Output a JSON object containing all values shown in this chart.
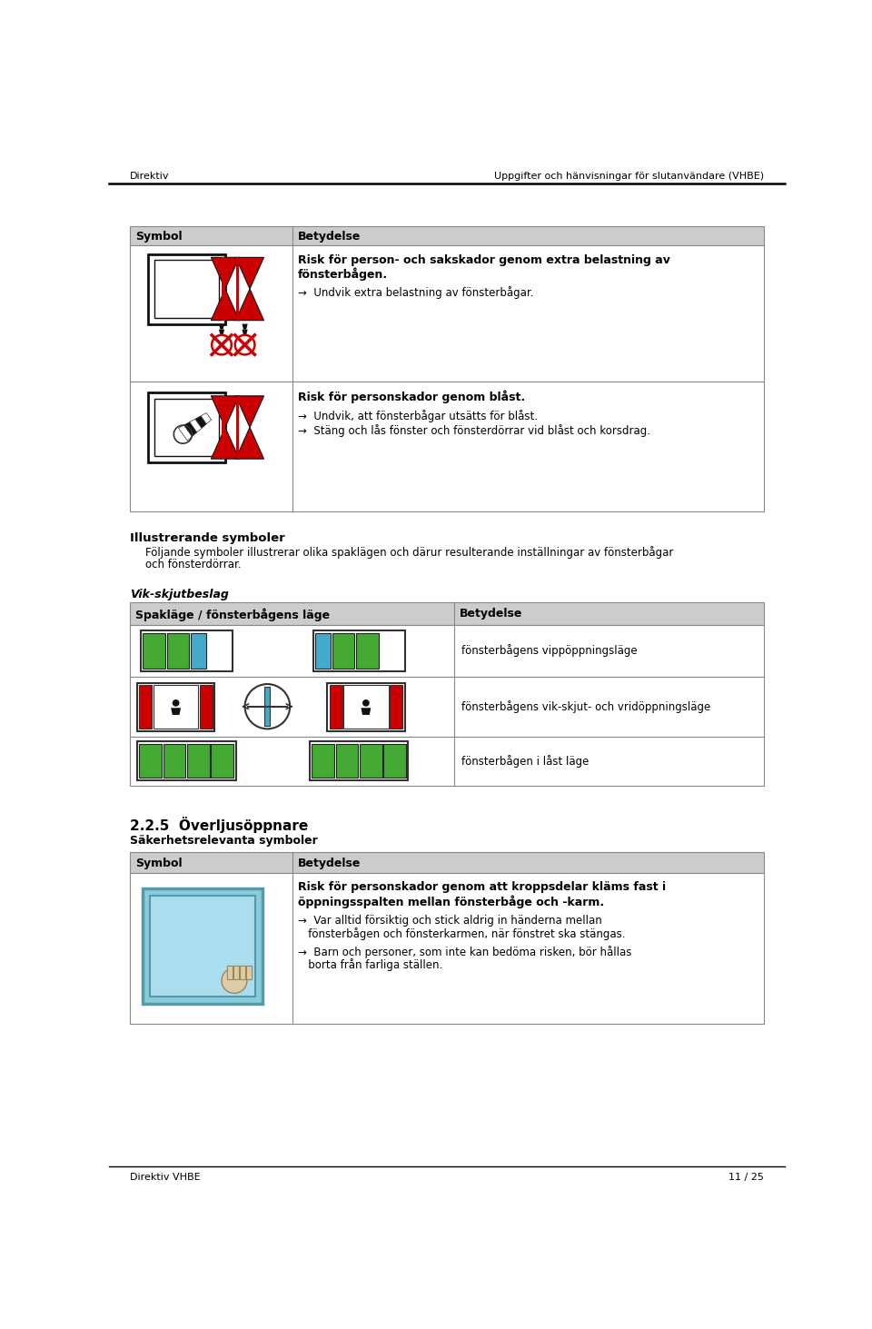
{
  "header_left": "Direktiv",
  "header_right": "Uppgifter och hänvisningar för slutanvändare (VHBE)",
  "footer_left": "Direktiv VHBE",
  "footer_right": "11 / 25",
  "section_heading": "Illustrerande symboler",
  "section_body_line1": "Följande symboler illustrerar olika spaklägen och därur resulterande inställningar av fönsterbågar",
  "section_body_line2": "och fönsterdörrar.",
  "table1_h1": "Symbol",
  "table1_h2": "Betydelse",
  "r1_bold": "Risk för person- och sakskador genom extra belastning av\nfönsterbågen.",
  "r1_text": "→  Undvik extra belastning av fönsterbågar.",
  "r2_bold": "Risk för personskador genom blåst.",
  "r2_text1": "→  Undvik, att fönsterbågar utsätts för blåst.",
  "r2_text2": "→  Stäng och lås fönster och fönsterdörrar vid blåst och korsdrag.",
  "section2_heading": "Vik-skjutbeslag",
  "table2_h1": "Spakläge / fönsterbågens läge",
  "table2_h2": "Betydelse",
  "t2r1": "fönsterbågens vippöppningsläge",
  "t2r2": "fönsterbågens vik-skjut- och vridöppningsläge",
  "t2r3": "fönsterbågen i låst läge",
  "section3_heading": "2.2.5  Överljusöppnare",
  "section3_sub": "Säkerhetsrelevanta symboler",
  "table3_h1": "Symbol",
  "table3_h2": "Betydelse",
  "t3r1_bold": "Risk för personskador genom att kroppsdelar kläms fast i\nöppningsspalten mellan fönsterbåge och -karm.",
  "t3r1_text1": "→  Var alltid försiktig och stick aldrig in händerna mellan",
  "t3r1_text2": "   fönsterbågen och fönsterkarmen, när fönstret ska stängas.",
  "t3r1_text3": "→  Barn och personer, som inte kan bedöma risken, bör hållas",
  "t3r1_text4": "   borta från farliga ställen.",
  "bg": "#ffffff",
  "table_hdr_bg": "#cccccc",
  "table_border": "#888888",
  "red": "#cc0000",
  "green": "#44aa33",
  "blue": "#44aacc",
  "dark": "#222222"
}
